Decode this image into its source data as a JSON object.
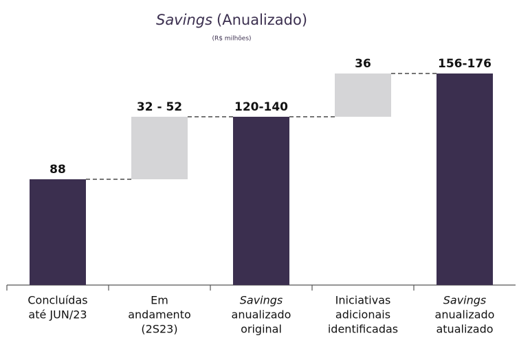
{
  "chart_data": {
    "type": "waterfall",
    "title": [
      "Savings",
      "(Anualizado)"
    ],
    "subtitle": "(R$ milhões)",
    "categories": [
      [
        "Concluídas",
        "até JUN/23"
      ],
      [
        "Em",
        "andamento",
        "(2S23)"
      ],
      [
        "Savings",
        "anualizado",
        "original"
      ],
      [
        "Iniciativas",
        "adicionais",
        "identificadas"
      ],
      [
        "Savings",
        "anualizado",
        "atualizado"
      ]
    ],
    "measure": [
      "absolute",
      "relative",
      "total",
      "relative",
      "total"
    ],
    "values": [
      88,
      52,
      140,
      36,
      176
    ],
    "value_labels": [
      "88",
      "32 - 52",
      "120-140",
      "36",
      "156-176"
    ],
    "colors": {
      "total": "#3b2f4f",
      "relative": "#d5d5d7"
    }
  }
}
